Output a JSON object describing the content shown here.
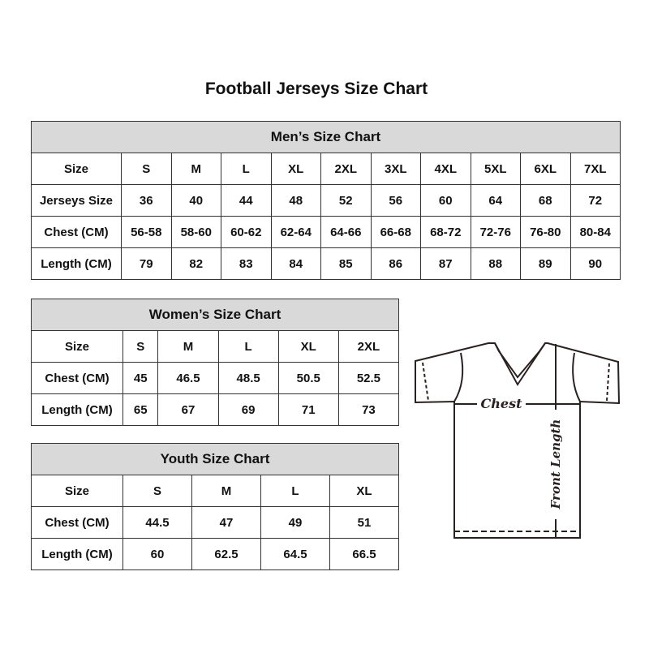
{
  "title": "Football Jerseys Size Chart",
  "men": {
    "heading": "Men’s Size Chart",
    "rows": [
      [
        "Size",
        "S",
        "M",
        "L",
        "XL",
        "2XL",
        "3XL",
        "4XL",
        "5XL",
        "6XL",
        "7XL"
      ],
      [
        "Jerseys Size",
        "36",
        "40",
        "44",
        "48",
        "52",
        "56",
        "60",
        "64",
        "68",
        "72"
      ],
      [
        "Chest (CM)",
        "56-58",
        "58-60",
        "60-62",
        "62-64",
        "64-66",
        "66-68",
        "68-72",
        "72-76",
        "76-80",
        "80-84"
      ],
      [
        "Length (CM)",
        "79",
        "82",
        "83",
        "84",
        "85",
        "86",
        "87",
        "88",
        "89",
        "90"
      ]
    ]
  },
  "women": {
    "heading": "Women’s Size Chart",
    "rows": [
      [
        "Size",
        "S",
        "M",
        "L",
        "XL",
        "2XL"
      ],
      [
        "Chest (CM)",
        "45",
        "46.5",
        "48.5",
        "50.5",
        "52.5"
      ],
      [
        "Length (CM)",
        "65",
        "67",
        "69",
        "71",
        "73"
      ]
    ]
  },
  "youth": {
    "heading": "Youth Size Chart",
    "rows": [
      [
        "Size",
        "S",
        "M",
        "L",
        "XL"
      ],
      [
        "Chest (CM)",
        "44.5",
        "47",
        "49",
        "51"
      ],
      [
        "Length (CM)",
        "60",
        "62.5",
        "64.5",
        "66.5"
      ]
    ]
  },
  "diagram": {
    "chest_label": "Chest",
    "length_label": "Front Length"
  },
  "colors": {
    "header_bg": "#d9d9d9",
    "border": "#333333"
  }
}
